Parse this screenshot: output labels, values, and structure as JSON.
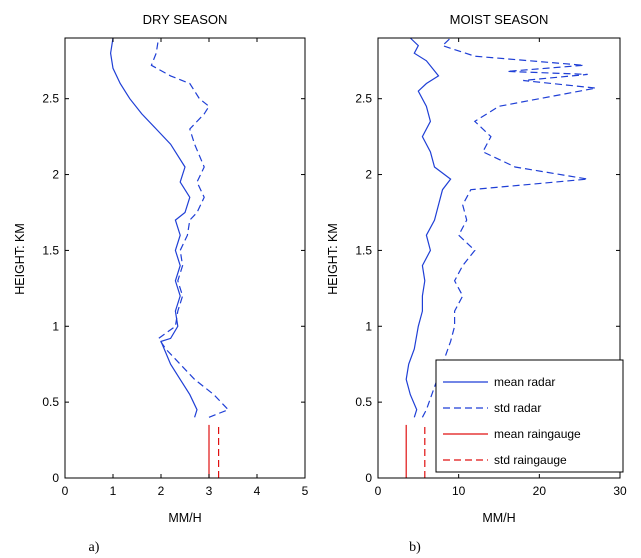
{
  "colors": {
    "radar": "#1f3fd6",
    "raingauge": "#e01010",
    "axis": "#000000"
  },
  "panel_labels": [
    "a)",
    "b)"
  ],
  "legend": {
    "placement": "bottom-right of panel b",
    "entries": [
      {
        "label": "mean radar",
        "color": "#1f3fd6",
        "dash": "solid"
      },
      {
        "label": "std radar",
        "color": "#1f3fd6",
        "dash": "dashed"
      },
      {
        "label": "mean raingauge",
        "color": "#e01010",
        "dash": "solid"
      },
      {
        "label": "std raingauge",
        "color": "#e01010",
        "dash": "dashed"
      }
    ]
  },
  "chart_data": [
    {
      "type": "line",
      "title": "DRY SEASON",
      "xlabel": "MM/H",
      "ylabel": "HEIGHT: KM",
      "xlim": [
        0,
        5
      ],
      "ylim": [
        0,
        2.9
      ],
      "xticks": [
        "0",
        "1",
        "2",
        "3",
        "4",
        "5"
      ],
      "yticks": [
        "0",
        "0.5",
        "1",
        "1.5",
        "2",
        "2.5"
      ],
      "grid": false,
      "series": [
        {
          "name": "mean radar",
          "style": "solid",
          "color": "#1f3fd6",
          "points": [
            [
              2.7,
              0.4
            ],
            [
              2.75,
              0.45
            ],
            [
              2.6,
              0.55
            ],
            [
              2.4,
              0.65
            ],
            [
              2.2,
              0.75
            ],
            [
              2.0,
              0.9
            ],
            [
              2.2,
              0.92
            ],
            [
              2.35,
              1.0
            ],
            [
              2.3,
              1.1
            ],
            [
              2.4,
              1.2
            ],
            [
              2.3,
              1.3
            ],
            [
              2.4,
              1.4
            ],
            [
              2.3,
              1.5
            ],
            [
              2.4,
              1.6
            ],
            [
              2.3,
              1.7
            ],
            [
              2.5,
              1.75
            ],
            [
              2.6,
              1.85
            ],
            [
              2.4,
              1.95
            ],
            [
              2.5,
              2.05
            ],
            [
              2.3,
              2.15
            ],
            [
              2.2,
              2.2
            ],
            [
              1.9,
              2.3
            ],
            [
              1.6,
              2.4
            ],
            [
              1.35,
              2.5
            ],
            [
              1.15,
              2.6
            ],
            [
              1.0,
              2.7
            ],
            [
              0.95,
              2.8
            ],
            [
              1.0,
              2.9
            ]
          ]
        },
        {
          "name": "std radar",
          "style": "dashed",
          "color": "#1f3fd6",
          "points": [
            [
              3.0,
              0.4
            ],
            [
              3.4,
              0.45
            ],
            [
              3.1,
              0.55
            ],
            [
              2.7,
              0.65
            ],
            [
              2.4,
              0.75
            ],
            [
              2.1,
              0.85
            ],
            [
              1.95,
              0.92
            ],
            [
              2.3,
              1.0
            ],
            [
              2.35,
              1.1
            ],
            [
              2.45,
              1.2
            ],
            [
              2.35,
              1.3
            ],
            [
              2.45,
              1.4
            ],
            [
              2.4,
              1.5
            ],
            [
              2.55,
              1.6
            ],
            [
              2.6,
              1.7
            ],
            [
              2.75,
              1.75
            ],
            [
              2.9,
              1.85
            ],
            [
              2.75,
              1.95
            ],
            [
              2.9,
              2.05
            ],
            [
              2.7,
              2.2
            ],
            [
              2.6,
              2.3
            ],
            [
              2.9,
              2.4
            ],
            [
              3.0,
              2.45
            ],
            [
              2.8,
              2.5
            ],
            [
              2.6,
              2.6
            ],
            [
              2.2,
              2.65
            ],
            [
              1.8,
              2.72
            ],
            [
              1.9,
              2.8
            ],
            [
              1.95,
              2.9
            ]
          ]
        },
        {
          "name": "mean raingauge",
          "style": "solid",
          "color": "#e01010",
          "points": [
            [
              3.0,
              0.0
            ],
            [
              3.0,
              0.35
            ]
          ]
        },
        {
          "name": "std raingauge",
          "style": "dashed",
          "color": "#e01010",
          "points": [
            [
              3.2,
              0.0
            ],
            [
              3.2,
              0.35
            ]
          ]
        }
      ]
    },
    {
      "type": "line",
      "title": "MOIST SEASON",
      "xlabel": "MM/H",
      "ylabel": "HEIGHT: KM",
      "xlim": [
        0,
        30
      ],
      "ylim": [
        0,
        2.9
      ],
      "xticks": [
        "0",
        "10",
        "20",
        "30"
      ],
      "yticks": [
        "0",
        "0.5",
        "1",
        "1.5",
        "2",
        "2.5"
      ],
      "grid": false,
      "series": [
        {
          "name": "mean radar",
          "style": "solid",
          "color": "#1f3fd6",
          "points": [
            [
              4.5,
              0.4
            ],
            [
              4.8,
              0.45
            ],
            [
              4.0,
              0.55
            ],
            [
              3.5,
              0.65
            ],
            [
              3.8,
              0.75
            ],
            [
              4.5,
              0.85
            ],
            [
              5.0,
              1.0
            ],
            [
              5.5,
              1.1
            ],
            [
              5.5,
              1.2
            ],
            [
              5.8,
              1.3
            ],
            [
              5.5,
              1.4
            ],
            [
              6.5,
              1.5
            ],
            [
              6.0,
              1.6
            ],
            [
              7.0,
              1.7
            ],
            [
              7.5,
              1.8
            ],
            [
              8.0,
              1.9
            ],
            [
              9.0,
              1.97
            ],
            [
              7.0,
              2.05
            ],
            [
              6.5,
              2.15
            ],
            [
              5.5,
              2.25
            ],
            [
              6.5,
              2.35
            ],
            [
              6.0,
              2.45
            ],
            [
              5.0,
              2.55
            ],
            [
              6.0,
              2.6
            ],
            [
              7.5,
              2.65
            ],
            [
              6.0,
              2.75
            ],
            [
              4.5,
              2.8
            ],
            [
              5.0,
              2.85
            ],
            [
              4.0,
              2.9
            ]
          ]
        },
        {
          "name": "std radar",
          "style": "dashed",
          "color": "#1f3fd6",
          "points": [
            [
              5.5,
              0.4
            ],
            [
              6.0,
              0.45
            ],
            [
              7.0,
              0.6
            ],
            [
              8.0,
              0.75
            ],
            [
              9.0,
              0.9
            ],
            [
              9.5,
              1.0
            ],
            [
              9.5,
              1.1
            ],
            [
              10.5,
              1.2
            ],
            [
              9.5,
              1.3
            ],
            [
              10.5,
              1.4
            ],
            [
              12.0,
              1.5
            ],
            [
              10.0,
              1.6
            ],
            [
              11.0,
              1.7
            ],
            [
              10.5,
              1.8
            ],
            [
              11.5,
              1.9
            ],
            [
              26.0,
              1.97
            ],
            [
              17.0,
              2.05
            ],
            [
              13.0,
              2.15
            ],
            [
              14.0,
              2.25
            ],
            [
              12.0,
              2.35
            ],
            [
              15.0,
              2.45
            ],
            [
              20.0,
              2.5
            ],
            [
              27.0,
              2.57
            ],
            [
              18.0,
              2.62
            ],
            [
              26.0,
              2.66
            ],
            [
              16.0,
              2.68
            ],
            [
              25.5,
              2.72
            ],
            [
              12.0,
              2.78
            ],
            [
              8.0,
              2.85
            ],
            [
              9.0,
              2.9
            ]
          ]
        },
        {
          "name": "mean raingauge",
          "style": "solid",
          "color": "#e01010",
          "points": [
            [
              3.5,
              0.0
            ],
            [
              3.5,
              0.35
            ]
          ]
        },
        {
          "name": "std raingauge",
          "style": "dashed",
          "color": "#e01010",
          "points": [
            [
              5.8,
              0.0
            ],
            [
              5.8,
              0.35
            ]
          ]
        }
      ]
    }
  ]
}
